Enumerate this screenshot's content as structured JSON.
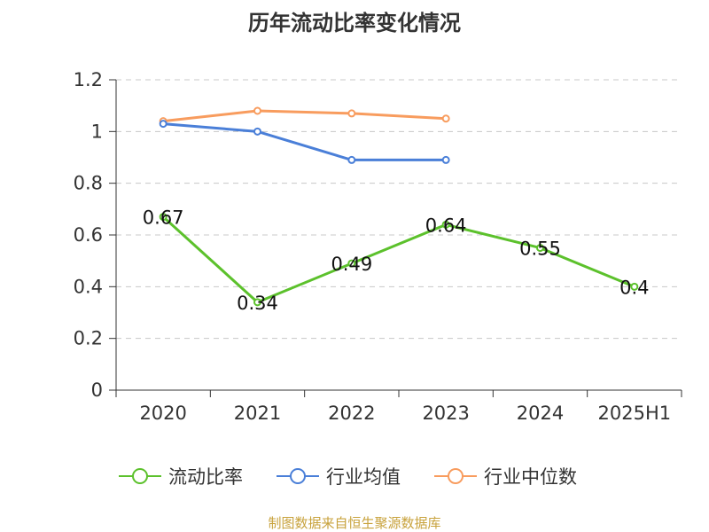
{
  "chart_data": {
    "type": "line",
    "title": "历年流动比率变化情况",
    "categories": [
      "2020",
      "2021",
      "2022",
      "2023",
      "2024",
      "2025H1"
    ],
    "ylim": [
      0,
      1.2
    ],
    "yticks": [
      "0",
      "0.2",
      "0.4",
      "0.6",
      "0.8",
      "1",
      "1.2"
    ],
    "grid": true,
    "legend_position": "bottom",
    "series": [
      {
        "name": "流动比率",
        "color": "#5cc12c",
        "values": [
          0.67,
          0.34,
          0.49,
          0.64,
          0.55,
          0.4
        ],
        "labels": [
          "0.67",
          "0.34",
          "0.49",
          "0.64",
          "0.55",
          "0.4"
        ]
      },
      {
        "name": "行业均值",
        "color": "#4a7fd8",
        "values": [
          1.03,
          1.0,
          0.89,
          0.89,
          null,
          null
        ]
      },
      {
        "name": "行业中位数",
        "color": "#f89c5e",
        "values": [
          1.04,
          1.08,
          1.07,
          1.05,
          null,
          null
        ]
      }
    ]
  },
  "source_note": "制图数据来自恒生聚源数据库"
}
